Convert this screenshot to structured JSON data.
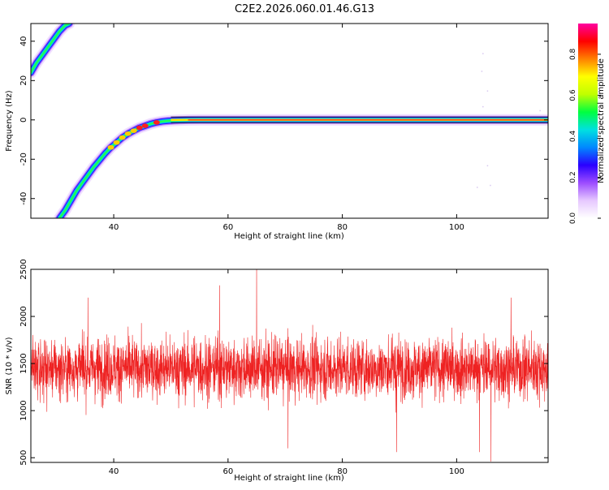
{
  "title": "C2E2.2026.060.01.46.G13",
  "chart_data": [
    {
      "type": "heatmap",
      "xlabel": "Height of straight line (km)",
      "ylabel": "Frequency (Hz)",
      "xlim": [
        25.5,
        116
      ],
      "ylim": [
        -50,
        49
      ],
      "xticks": [
        40,
        60,
        80,
        100
      ],
      "yticks": [
        -40,
        -20,
        0,
        20,
        40
      ],
      "colorbar": {
        "label": "Normalized spectral amplitude",
        "ticks": [
          "0.0",
          "0.2",
          "0.4",
          "0.6",
          "0.8"
        ],
        "range": [
          0,
          0.95
        ],
        "colormap": [
          "#ffffff",
          "#e6c8ff",
          "#9c4cff",
          "#2a00ff",
          "#0088ff",
          "#00e0e0",
          "#00ff40",
          "#c0ff00",
          "#ffff00",
          "#ff8000",
          "#ff0000",
          "#ff00a0"
        ]
      },
      "traces": [
        {
          "name": "",
          "x": [
            25.5,
            26.5,
            27.5,
            28.5,
            29.5,
            30.5,
            31.5,
            32.2
          ],
          "y": [
            24,
            29,
            33,
            37,
            41,
            45,
            48,
            49
          ]
        },
        {
          "name": "",
          "x": [
            30.5,
            31.5,
            32.5,
            33.5,
            34.5,
            35.5,
            36.5,
            37.5,
            38.5,
            39.5,
            40.5,
            41.5,
            42.5,
            43.5,
            44.5,
            45.5,
            46.5,
            47.5,
            48.5,
            49.5,
            50.5,
            51.5,
            53,
            55,
            60,
            80,
            100,
            116
          ],
          "y": [
            -50,
            -46,
            -41,
            -36,
            -32,
            -28,
            -24,
            -20.5,
            -17,
            -14,
            -11.5,
            -9,
            -7,
            -5.5,
            -4,
            -3,
            -2,
            -1.3,
            -0.8,
            -0.5,
            -0.3,
            -0.15,
            -0.05,
            0,
            0,
            0,
            0,
            0
          ]
        }
      ]
    },
    {
      "type": "line",
      "xlabel": "Height of straight line (km)",
      "ylabel": "SNR (10 * v/v)",
      "xlim": [
        25.5,
        116
      ],
      "ylim": [
        450,
        2500
      ],
      "xticks": [
        40,
        60,
        80,
        100
      ],
      "yticks": [
        500,
        1000,
        1500,
        2000,
        2500
      ],
      "series": [
        {
          "name": "",
          "color": "#ee2222",
          "x_range": [
            25.5,
            116
          ],
          "n_points": 3000,
          "mean": 1450,
          "typical_range": [
            1000,
            1900
          ],
          "extremes": [
            {
              "x": 65,
              "y": 2500
            },
            {
              "x": 106,
              "y": 460
            },
            {
              "x": 58.5,
              "y": 2330
            },
            {
              "x": 109.5,
              "y": 2200
            },
            {
              "x": 89.5,
              "y": 560
            },
            {
              "x": 104,
              "y": 560
            },
            {
              "x": 70.5,
              "y": 600
            },
            {
              "x": 35.5,
              "y": 2200
            }
          ]
        }
      ]
    }
  ]
}
